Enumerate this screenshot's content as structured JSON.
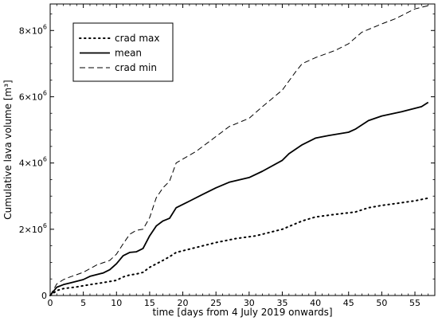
{
  "chart_data": {
    "type": "line",
    "xlabel": "time [days from 4 July 2019 onwards]",
    "ylabel": "Cumulative lava volume [m³]",
    "xlim": [
      0,
      58
    ],
    "ylim": [
      0,
      8800000
    ],
    "x_ticks": [
      0,
      5,
      10,
      15,
      20,
      25,
      30,
      35,
      40,
      45,
      50,
      55
    ],
    "y_ticks": [
      {
        "value": 0,
        "mantissa": "0",
        "exponent": ""
      },
      {
        "value": 2000000,
        "mantissa": "2×10",
        "exponent": "6"
      },
      {
        "value": 4000000,
        "mantissa": "4×10",
        "exponent": "6"
      },
      {
        "value": 6000000,
        "mantissa": "6×10",
        "exponent": "6"
      },
      {
        "value": 8000000,
        "mantissa": "8×10",
        "exponent": "6"
      }
    ],
    "legend_position": "top-left",
    "grid": false,
    "series": [
      {
        "name": "crad max",
        "style": "dotted",
        "x": [
          0,
          1,
          2,
          4,
          6,
          8,
          10,
          11,
          12,
          13,
          14,
          15,
          17,
          18,
          19,
          22,
          25,
          28,
          31,
          35,
          38,
          40,
          43,
          46,
          48,
          50,
          53,
          55,
          57
        ],
        "y": [
          0,
          150000,
          210000,
          260000,
          330000,
          390000,
          460000,
          560000,
          620000,
          650000,
          700000,
          850000,
          1060000,
          1170000,
          1300000,
          1450000,
          1600000,
          1720000,
          1800000,
          2000000,
          2250000,
          2370000,
          2450000,
          2520000,
          2650000,
          2720000,
          2800000,
          2860000,
          2940000
        ]
      },
      {
        "name": "mean",
        "style": "solid",
        "x": [
          0,
          1,
          2,
          3,
          5,
          6,
          8,
          9,
          10,
          11,
          12,
          13,
          14,
          15,
          16,
          17,
          18,
          19,
          21,
          23,
          25,
          27,
          30,
          32,
          35,
          36,
          38,
          40,
          42,
          45,
          46,
          48,
          50,
          53,
          55,
          56,
          57
        ],
        "y": [
          0,
          250000,
          330000,
          380000,
          480000,
          580000,
          680000,
          780000,
          960000,
          1200000,
          1300000,
          1320000,
          1420000,
          1800000,
          2100000,
          2250000,
          2330000,
          2650000,
          2850000,
          3050000,
          3250000,
          3420000,
          3560000,
          3750000,
          4080000,
          4280000,
          4550000,
          4750000,
          4830000,
          4930000,
          5020000,
          5280000,
          5420000,
          5550000,
          5650000,
          5700000,
          5830000
        ]
      },
      {
        "name": "crad min",
        "style": "dashed",
        "x": [
          0,
          1,
          2,
          3,
          5,
          7,
          9,
          10,
          11,
          12,
          13,
          14,
          15,
          16,
          17,
          18,
          19,
          22,
          25,
          27,
          30,
          32,
          35,
          37,
          38,
          40,
          43,
          45,
          47,
          50,
          52,
          55,
          57
        ],
        "y": [
          0,
          350000,
          480000,
          560000,
          700000,
          920000,
          1060000,
          1250000,
          1560000,
          1850000,
          1970000,
          2000000,
          2350000,
          2950000,
          3250000,
          3450000,
          4000000,
          4350000,
          4800000,
          5100000,
          5350000,
          5700000,
          6200000,
          6750000,
          7000000,
          7180000,
          7400000,
          7600000,
          7950000,
          8200000,
          8350000,
          8650000,
          8750000
        ]
      }
    ]
  }
}
